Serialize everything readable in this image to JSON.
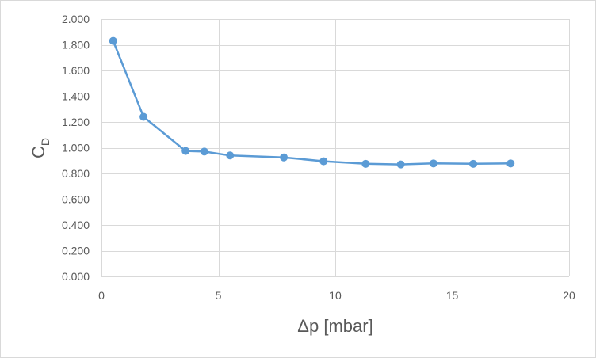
{
  "chart_data": {
    "type": "scatter",
    "series": [
      {
        "x": [
          0.5,
          1.8,
          3.6,
          4.4,
          5.5,
          7.8,
          9.5,
          11.3,
          12.8,
          14.2,
          15.9,
          17.5
        ],
        "y": [
          1.83,
          1.24,
          0.975,
          0.97,
          0.94,
          0.925,
          0.895,
          0.875,
          0.87,
          0.878,
          0.875,
          0.878
        ],
        "color": "#5b9bd5",
        "lines": true,
        "markers": true
      }
    ],
    "xlim": [
      0,
      20
    ],
    "ylim": [
      0,
      2
    ],
    "x_ticks": [
      0,
      5,
      10,
      15,
      20
    ],
    "y_ticks": [
      0,
      0.2,
      0.4,
      0.6,
      0.8,
      1.0,
      1.2,
      1.4,
      1.6,
      1.8,
      2.0
    ],
    "x_tick_labels": [
      "0",
      "5",
      "10",
      "15",
      "20"
    ],
    "y_tick_labels": [
      "0.000",
      "0.200",
      "0.400",
      "0.600",
      "0.800",
      "1.000",
      "1.200",
      "1.400",
      "1.600",
      "1.800",
      "2.000"
    ],
    "xlabel": "Δp [mbar]",
    "ylabel_main": "C",
    "ylabel_sub": "D",
    "grid": true,
    "grid_color": "#d9d9d9",
    "text_color": "#595959"
  }
}
